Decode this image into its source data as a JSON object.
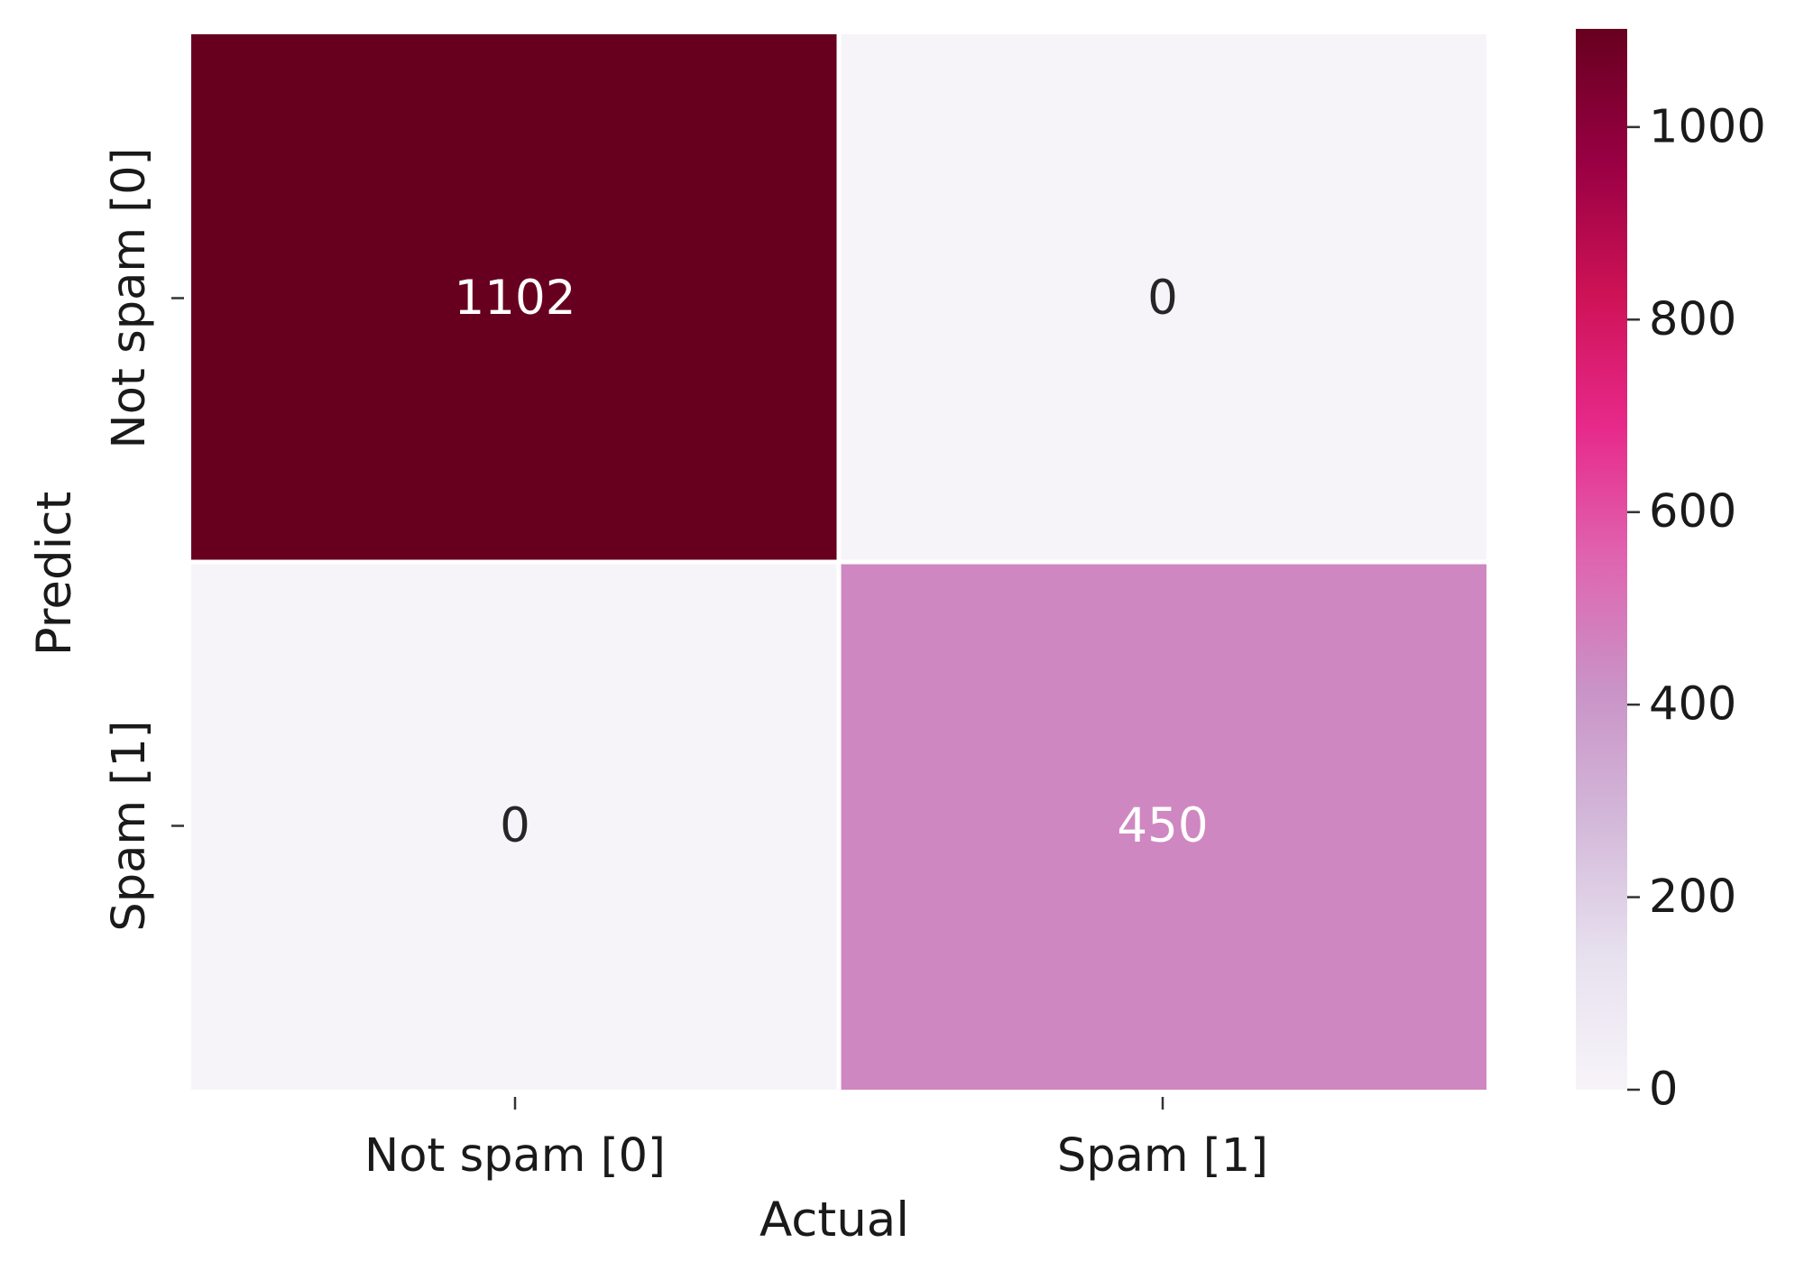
{
  "chart_data": {
    "type": "heatmap",
    "title": "",
    "xlabel": "Actual",
    "ylabel": "Predict",
    "x_categories": [
      "Not spam [0]",
      "Spam [1]"
    ],
    "y_categories": [
      "Not spam [0]",
      "Spam [1]"
    ],
    "values": [
      [
        1102,
        0
      ],
      [
        0,
        450
      ]
    ],
    "colorbar": {
      "min": 0,
      "max": 1102,
      "ticks": [
        0,
        200,
        400,
        600,
        800,
        1000
      ],
      "colormap": "PuRd"
    },
    "grid": false,
    "legend": "colorbar-right"
  }
}
